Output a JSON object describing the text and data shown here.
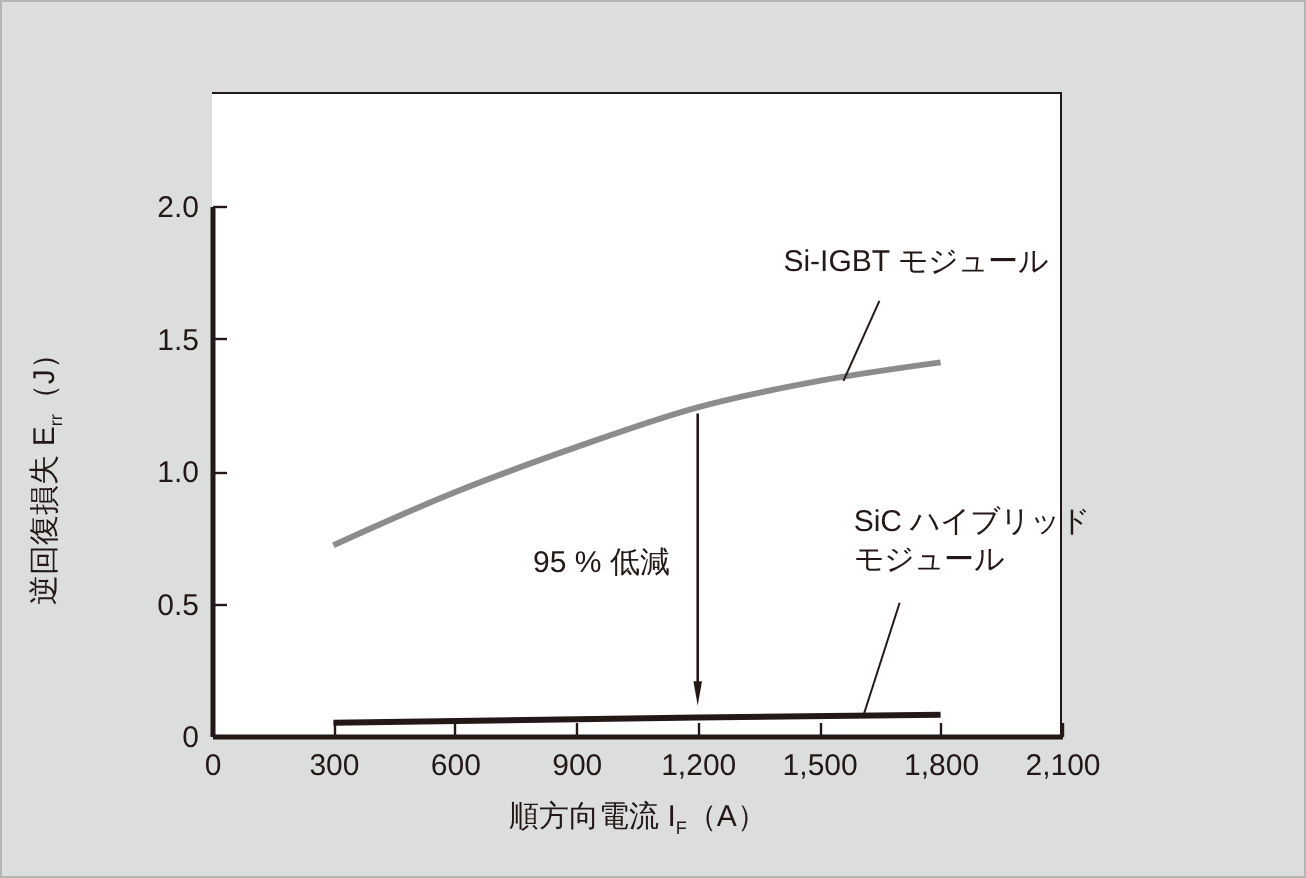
{
  "chart_data": {
    "type": "line",
    "xlabel": "順方向電流 I$_{F}$（A）",
    "ylabel": "逆回復損失 E$_{rr}$（J）",
    "xlim": [
      0,
      2100
    ],
    "xticks": [
      0,
      300,
      600,
      900,
      {
        "value": 1200,
        "label": "1,200"
      },
      {
        "value": 1500,
        "label": "1,500"
      },
      {
        "value": 1800,
        "label": "1,800"
      },
      {
        "value": 2100,
        "label": "2,100"
      }
    ],
    "ylim": [
      0,
      2.0
    ],
    "yticks": [
      0,
      0.5,
      {
        "value": 1.0,
        "label": "1.0"
      },
      1.5,
      {
        "value": 2.0,
        "label": "2.0"
      }
    ],
    "series": [
      {
        "name": "Si-IGBT モジュール",
        "color": "#8c8c8c",
        "x": [
          300,
          600,
          900,
          1200,
          1500,
          1800
        ],
        "values": [
          0.72,
          0.92,
          1.09,
          1.24,
          1.34,
          1.41
        ]
      },
      {
        "name": "SiC ハイブリッドモジュール",
        "color": "#231815",
        "x": [
          300,
          1200,
          1800
        ],
        "values": [
          0.05,
          0.07,
          0.08
        ]
      }
    ],
    "annotations": [
      "95 % 低減"
    ],
    "grid": false,
    "legend": false,
    "marker": "none",
    "line_style": "solid"
  }
}
